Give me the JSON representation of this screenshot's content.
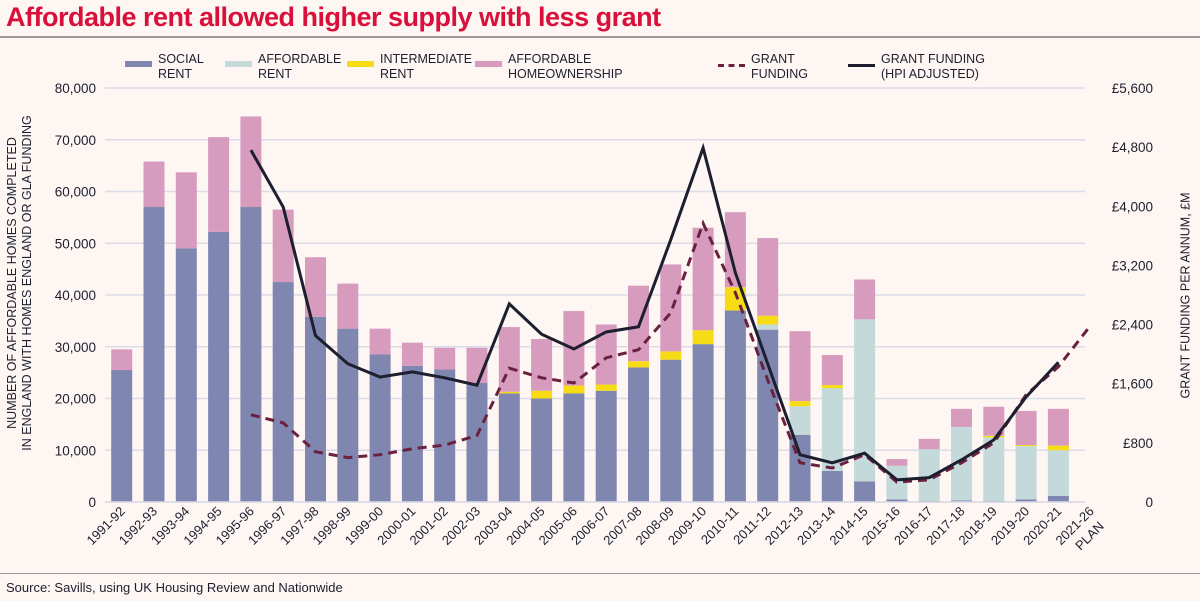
{
  "title": "Affordable rent allowed higher supply with less grant",
  "source": "Source: Savills, using UK Housing Review and Nationwide",
  "chart_data": {
    "type": "bar",
    "stacked": true,
    "categories": [
      "1991-92",
      "1992-93",
      "1993-94",
      "1994-95",
      "1995-96",
      "1996-97",
      "1997-98",
      "1998-99",
      "1999-00",
      "2000-01",
      "2001-02",
      "2002-03",
      "2003-04",
      "2004-05",
      "2005-06",
      "2006-07",
      "2007-08",
      "2008-09",
      "2009-10",
      "2010-11",
      "2011-12",
      "2012-13",
      "2013-14",
      "2014-15",
      "2015-16",
      "2016-17",
      "2017-18",
      "2018-19",
      "2019-20",
      "2020-21",
      "2021-26 PLAN"
    ],
    "ylabel": "NUMBER OF AFFORDABLE HOMES COMPLETED IN ENGLAND WITH HOMES ENGLAND OR GLA FUNDING",
    "ylabel_lines": [
      "NUMBER OF AFFORDABLE HOMES COMPLETED",
      "IN ENGLAND WITH HOMES ENGLAND OR GLA FUNDING"
    ],
    "y2label": "GRANT FUNDING PER ANNUM, £M",
    "ylim": [
      0,
      80000
    ],
    "y2lim": [
      0,
      5600
    ],
    "yticks": [
      "0",
      "10,000",
      "20,000",
      "30,000",
      "40,000",
      "50,000",
      "60,000",
      "70,000",
      "80,000"
    ],
    "y2ticks": [
      "0",
      "£800",
      "£1,600",
      "£2,400",
      "£3,200",
      "£4,000",
      "£4,800",
      "£5,600"
    ],
    "grid": true,
    "legend_position": "top",
    "series": [
      {
        "name": "SOCIAL RENT",
        "name_lines": [
          "SOCIAL",
          "RENT"
        ],
        "kind": "bar",
        "color": "#7f86b0",
        "values": [
          25500,
          57000,
          49000,
          52200,
          57000,
          42500,
          35800,
          33500,
          28500,
          26300,
          25600,
          23000,
          21000,
          20000,
          21000,
          21500,
          26000,
          27500,
          30500,
          37000,
          33300,
          13000,
          6000,
          4000,
          500,
          200,
          300,
          200,
          500,
          1200,
          null
        ]
      },
      {
        "name": "AFFORDABLE RENT",
        "name_lines": [
          "AFFORDABLE",
          "RENT"
        ],
        "kind": "bar",
        "color": "#c3d9da",
        "values": [
          0,
          0,
          0,
          0,
          0,
          0,
          0,
          0,
          0,
          0,
          0,
          0,
          0,
          0,
          0,
          0,
          0,
          0,
          0,
          0,
          1000,
          5500,
          16000,
          31300,
          6500,
          10000,
          14200,
          12300,
          10300,
          8800,
          null
        ]
      },
      {
        "name": "INTERMEDIATE RENT",
        "name_lines": [
          "INTERMEDIATE",
          "RENT"
        ],
        "kind": "bar",
        "color": "#f7dc15",
        "values": [
          0,
          0,
          0,
          0,
          0,
          0,
          0,
          0,
          0,
          0,
          0,
          0,
          300,
          1500,
          1500,
          1200,
          1200,
          1600,
          2700,
          4500,
          1700,
          1000,
          600,
          0,
          0,
          0,
          0,
          300,
          200,
          900,
          null
        ]
      },
      {
        "name": "AFFORDABLE HOMEOWNERSHIP",
        "name_lines": [
          "AFFORDABLE",
          "HOMEOWNERSHIP"
        ],
        "kind": "bar",
        "color": "#d69bbd",
        "values": [
          4000,
          8800,
          14700,
          18300,
          17500,
          14000,
          11500,
          8700,
          5000,
          4500,
          4200,
          6800,
          12500,
          10000,
          14400,
          11600,
          14600,
          16800,
          19800,
          14500,
          15000,
          13500,
          5800,
          7700,
          1300,
          2000,
          3500,
          5600,
          6600,
          7100,
          null
        ]
      },
      {
        "name": "GRANT FUNDING",
        "name_lines": [
          "GRANT",
          "FUNDING"
        ],
        "kind": "line",
        "axis": "y2",
        "style": "dashed",
        "color": "#6b2040",
        "values": [
          null,
          null,
          null,
          null,
          1180,
          1070,
          680,
          600,
          640,
          720,
          770,
          900,
          1810,
          1680,
          1610,
          1950,
          2060,
          2560,
          3770,
          2830,
          1650,
          530,
          460,
          640,
          270,
          300,
          530,
          800,
          1450,
          1830,
          2390
        ]
      },
      {
        "name": "GRANT FUNDING (HPI ADJUSTED)",
        "name_lines": [
          "GRANT FUNDING",
          "(HPI ADJUSTED)"
        ],
        "kind": "line",
        "axis": "y2",
        "style": "solid",
        "color": "#1d1f2e",
        "values": [
          null,
          null,
          null,
          null,
          4760,
          3990,
          2250,
          1870,
          1690,
          1760,
          1680,
          1580,
          2680,
          2270,
          2070,
          2300,
          2370,
          3550,
          4790,
          3100,
          1870,
          640,
          530,
          660,
          300,
          330,
          570,
          840,
          1420,
          1890,
          null
        ]
      }
    ]
  }
}
